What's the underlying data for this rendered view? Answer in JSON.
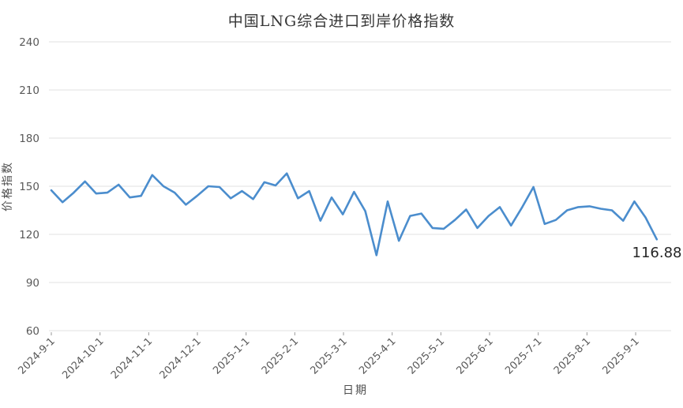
{
  "colors": {
    "line": "#4b8dcd",
    "grid": "#e8e8e8",
    "axis_tick": "#9a9a9a",
    "tick_label": "#595959",
    "title_text": "#363636",
    "annotation_text": "#262626",
    "background": "#ffffff"
  },
  "chart_data": {
    "type": "line",
    "title": "中国LNG综合进口到岸价格指数",
    "xlabel": "日期",
    "ylabel": "价格指数",
    "ylim": [
      60,
      240
    ],
    "y_ticks": [
      240,
      210,
      180,
      150,
      120,
      90,
      60
    ],
    "x_tick_labels": [
      "2024-9-1",
      "2024-10-1",
      "2024-11-1",
      "2024-12-1",
      "2025-1-1",
      "2025-2-1",
      "2025-3-1",
      "2025-4-1",
      "2025-5-1",
      "2025-6-1",
      "2025-7-1",
      "2025-8-1",
      "2025-9-1"
    ],
    "grid": "horizontal-only",
    "legend": "none",
    "annotation": {
      "text": "116.88",
      "value": 116.88,
      "position": "last-point"
    },
    "series": [
      {
        "name": "中国LNG综合进口到岸价格指数",
        "values": [
          147.5,
          140,
          146,
          153,
          145.5,
          146,
          151,
          143,
          144,
          157,
          150,
          146,
          138.5,
          144,
          150,
          149.5,
          142.5,
          147,
          142,
          152.5,
          150.5,
          158,
          142.5,
          147,
          128.5,
          143,
          132.5,
          146.5,
          134.5,
          107,
          140.5,
          116,
          131.5,
          133,
          124,
          123.5,
          129,
          135.5,
          124,
          131.5,
          137,
          125.5,
          137,
          149.5,
          126.5,
          129,
          135,
          137,
          137.5,
          136,
          135,
          128.5,
          140.5,
          130.5,
          116.88
        ]
      }
    ]
  }
}
